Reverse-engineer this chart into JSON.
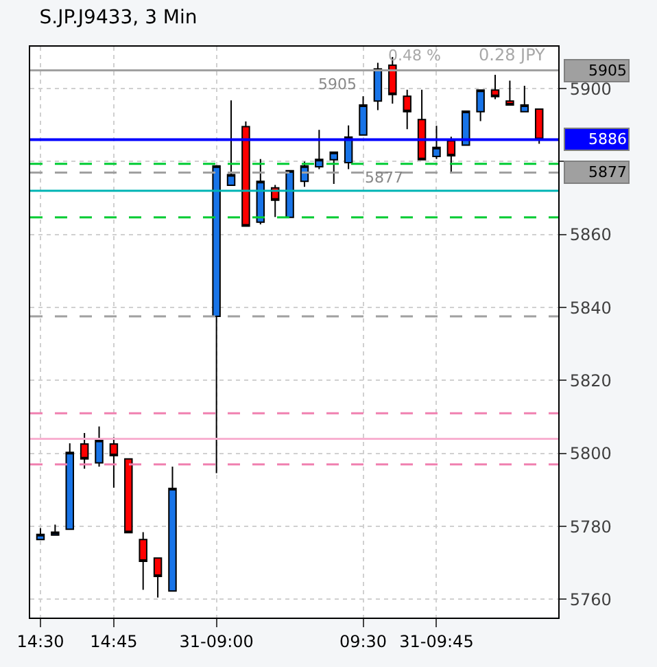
{
  "chart_data": {
    "type": "candlestick",
    "title": "S.JP.J9433, 3 Min",
    "categories": [
      "14:30",
      null,
      null,
      null,
      null,
      "14:45",
      null,
      null,
      null,
      null,
      null,
      null,
      "31-09:00",
      null,
      null,
      null,
      null,
      null,
      null,
      null,
      null,
      null,
      "09:30",
      null,
      null,
      null,
      null,
      "31-09:45",
      null,
      null,
      null,
      null,
      null,
      null,
      null
    ],
    "ohlc": [
      [
        5776.4,
        5779.5,
        5776.4,
        5777.8
      ],
      [
        5777.6,
        5780.5,
        5777.6,
        5778.4
      ],
      [
        5779.2,
        5802.8,
        5779.2,
        5800.3
      ],
      [
        5802.6,
        5805.6,
        5795.8,
        5798.5
      ],
      [
        5797.4,
        5807.4,
        5796.4,
        5803.6
      ],
      [
        5802.6,
        5804.4,
        5790.6,
        5799.4
      ],
      [
        5798.5,
        5798.5,
        5778.3,
        5778.3
      ],
      [
        5776.4,
        5778.4,
        5762.6,
        5770.4
      ],
      [
        5771.3,
        5771.3,
        5760.5,
        5766.3
      ],
      [
        5762.3,
        5796.4,
        5762.3,
        5790.4
      ],
      null,
      null,
      [
        5837.6,
        5878.8,
        5794.6,
        5878.8
      ],
      [
        5873.5,
        5896.8,
        5873.5,
        5876.4
      ],
      [
        5889.6,
        5891.0,
        5862.3,
        5862.3
      ],
      [
        5863.4,
        5880.7,
        5862.8,
        5874.6
      ],
      [
        5872.8,
        5873.6,
        5864.8,
        5869.4
      ],
      [
        5864.7,
        5877.5,
        5864.7,
        5877.5
      ],
      [
        5874.6,
        5880.0,
        5873.1,
        5878.8
      ],
      [
        5878.6,
        5888.7,
        5877.9,
        5880.6
      ],
      [
        5880.5,
        5882.6,
        5873.9,
        5882.6
      ],
      [
        5879.7,
        5889.9,
        5877.9,
        5886.7
      ],
      [
        5887.3,
        5897.9,
        5887.1,
        5895.5
      ],
      [
        5896.6,
        5907.1,
        5894.1,
        5905.4
      ],
      [
        5906.4,
        5908.7,
        5895.9,
        5898.4
      ],
      [
        5897.9,
        5899.7,
        5888.9,
        5893.7
      ],
      [
        5891.5,
        5899.7,
        5880.5,
        5880.5
      ],
      [
        5881.4,
        5889.8,
        5880.7,
        5883.9
      ],
      [
        5885.7,
        5886.8,
        5876.7,
        5881.6
      ],
      [
        5884.5,
        5893.8,
        5884.5,
        5893.8
      ],
      [
        5893.7,
        5899.6,
        5891.1,
        5899.6
      ],
      [
        5899.6,
        5903.8,
        5897.1,
        5897.8
      ],
      [
        5896.6,
        5902.2,
        5895.5,
        5895.5
      ],
      [
        5893.7,
        5900.8,
        5893.7,
        5895.5
      ],
      [
        5894.4,
        5894.4,
        5884.9,
        5886.0
      ]
    ],
    "colors": [
      "#1874e8",
      "#1874e8",
      "#1874e8",
      "#ff0000",
      "#1874e8",
      "#ff0000",
      "#ff0000",
      "#ff0000",
      "#ff0000",
      "#1874e8",
      null,
      null,
      "#1874e8",
      "#1874e8",
      "#ff0000",
      "#1874e8",
      "#ff0000",
      "#1874e8",
      "#1874e8",
      "#1874e8",
      "#1874e8",
      "#1874e8",
      "#1874e8",
      "#1874e8",
      "#ff0000",
      "#ff0000",
      "#ff0000",
      "#1874e8",
      "#ff0000",
      "#1874e8",
      "#1874e8",
      "#ff0000",
      "#ff0000",
      "#1874e8",
      "#ff0000"
    ],
    "ylim": [
      5755,
      5911.5
    ],
    "yticks": [
      5760,
      5780,
      5800,
      5820,
      5840,
      5860,
      {
        "value": 5880,
        "label": null
      },
      5900
    ],
    "grid": true,
    "ref_lines": [
      {
        "axis": "y",
        "value": 5905,
        "label": "5905",
        "color": "#a0a0a0",
        "line_style": "solid"
      },
      {
        "axis": "y",
        "value": 5886,
        "label": "5886",
        "color": "#0000ff",
        "line_style": "solid"
      },
      {
        "axis": "y",
        "value": 5877,
        "label": "5877",
        "color": "#a0a0a0",
        "line_style": "dashed"
      },
      {
        "axis": "y",
        "value": 5879.4,
        "color": "#00cc33",
        "line_style": "dashed"
      },
      {
        "axis": "y",
        "value": 5872,
        "color": "#00b4b4",
        "line_style": "solid"
      },
      {
        "axis": "y",
        "value": 5864.7,
        "color": "#00cc33",
        "line_style": "dashed"
      },
      {
        "axis": "y",
        "value": 5837.6,
        "color": "#a0a0a0",
        "line_style": "dashed"
      },
      {
        "axis": "y",
        "value": 5811,
        "color": "#f080b0",
        "line_style": "dashed"
      },
      {
        "axis": "y",
        "value": 5804,
        "color": "#f8b0d0",
        "line_style": "solid"
      },
      {
        "axis": "y",
        "value": 5797,
        "color": "#f080b0",
        "line_style": "dashed"
      }
    ],
    "annotations": [
      "0.28 JPY",
      "0.48 %",
      "5905",
      "5877"
    ]
  }
}
